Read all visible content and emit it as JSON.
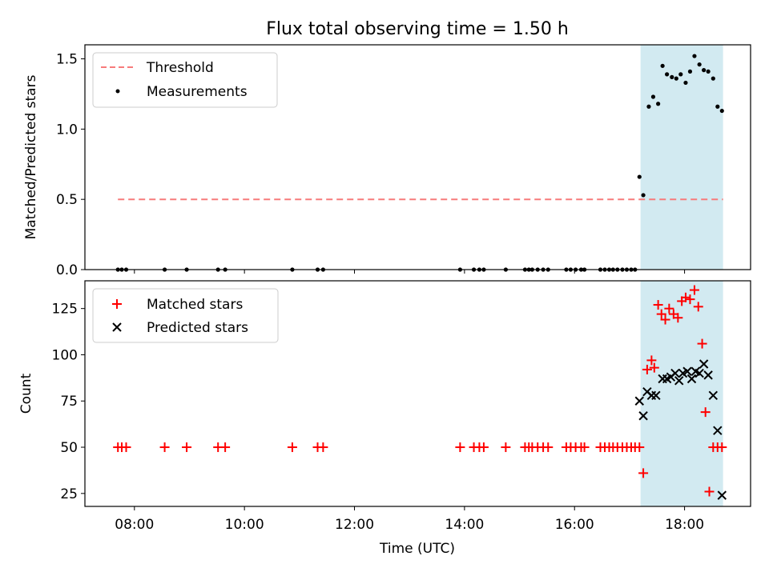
{
  "chart_data": [
    {
      "type": "scatter",
      "title": "Flux total observing time = 1.50 h",
      "xlabel": "",
      "ylabel": "Matched/Predicted stars",
      "ylim": [
        0,
        1.6
      ],
      "yticks": [
        "0.0",
        "0.5",
        "1.0",
        "1.5"
      ],
      "threshold": {
        "name": "Threshold",
        "y": 0.5,
        "x_start": 7.7,
        "x_end": 18.7,
        "color": "#f77b7b"
      },
      "shaded_region": {
        "x_start": 17.2,
        "x_end": 18.7,
        "color": "#add8e6"
      },
      "legend_position": "top-left",
      "series": [
        {
          "name": "Measurements",
          "color": "#000000",
          "x": [
            7.7,
            7.77,
            7.85,
            8.55,
            8.95,
            9.52,
            9.65,
            10.87,
            11.33,
            11.43,
            13.92,
            14.17,
            14.27,
            14.35,
            14.75,
            15.1,
            15.17,
            15.23,
            15.33,
            15.43,
            15.52,
            15.85,
            15.93,
            16.02,
            16.12,
            16.18,
            16.47,
            16.55,
            16.63,
            16.7,
            16.78,
            16.87,
            16.95,
            17.03,
            17.1,
            17.18,
            17.25,
            17.35,
            17.43,
            17.52,
            17.6,
            17.68,
            17.77,
            17.85,
            17.93,
            18.02,
            18.1,
            18.18,
            18.27,
            18.35,
            18.43,
            18.52,
            18.6,
            18.68
          ],
          "y": [
            0,
            0,
            0,
            0,
            0,
            0,
            0,
            0,
            0,
            0,
            0,
            0,
            0,
            0,
            0,
            0,
            0,
            0,
            0,
            0,
            0,
            0,
            0,
            0,
            0,
            0,
            0,
            0,
            0,
            0,
            0,
            0,
            0,
            0,
            0,
            0.66,
            0.53,
            1.16,
            1.23,
            1.18,
            1.45,
            1.39,
            1.37,
            1.36,
            1.39,
            1.33,
            1.41,
            1.52,
            1.46,
            1.42,
            1.41,
            1.36,
            1.16,
            1.13
          ]
        }
      ]
    },
    {
      "type": "scatter",
      "xlabel": "Time (UTC)",
      "ylabel": "Count",
      "ylim": [
        18,
        140
      ],
      "xlim": [
        7.1,
        19.2
      ],
      "xticks": [
        {
          "value": 8,
          "label": "08:00"
        },
        {
          "value": 10,
          "label": "10:00"
        },
        {
          "value": 12,
          "label": "12:00"
        },
        {
          "value": 14,
          "label": "14:00"
        },
        {
          "value": 16,
          "label": "16:00"
        },
        {
          "value": 18,
          "label": "18:00"
        }
      ],
      "yticks": [
        25,
        50,
        75,
        100,
        125
      ],
      "shaded_region": {
        "x_start": 17.2,
        "x_end": 18.7,
        "color": "#add8e6"
      },
      "legend_position": "top-left",
      "series": [
        {
          "name": "Matched stars",
          "marker": "plus",
          "color": "#ff0000",
          "x": [
            7.7,
            7.77,
            7.85,
            8.55,
            8.95,
            9.52,
            9.65,
            10.87,
            11.33,
            11.43,
            13.92,
            14.17,
            14.27,
            14.35,
            14.75,
            15.1,
            15.17,
            15.23,
            15.33,
            15.43,
            15.52,
            15.85,
            15.93,
            16.02,
            16.12,
            16.18,
            16.47,
            16.55,
            16.63,
            16.7,
            16.78,
            16.87,
            16.95,
            17.03,
            17.1,
            17.18,
            17.25,
            17.32,
            17.4,
            17.45,
            17.52,
            17.58,
            17.65,
            17.72,
            17.8,
            17.88,
            17.95,
            18.02,
            18.1,
            18.18,
            18.25,
            18.32,
            18.38,
            18.45,
            18.52,
            18.6,
            18.68
          ],
          "y": [
            50,
            50,
            50,
            50,
            50,
            50,
            50,
            50,
            50,
            50,
            50,
            50,
            50,
            50,
            50,
            50,
            50,
            50,
            50,
            50,
            50,
            50,
            50,
            50,
            50,
            50,
            50,
            50,
            50,
            50,
            50,
            50,
            50,
            50,
            50,
            50,
            36,
            92,
            97,
            93,
            127,
            122,
            119,
            125,
            122,
            120,
            129,
            131,
            130,
            135,
            126,
            106,
            69,
            26,
            50,
            50,
            50
          ]
        },
        {
          "name": "Predicted stars",
          "marker": "x",
          "color": "#000000",
          "x": [
            17.18,
            17.25,
            17.32,
            17.4,
            17.48,
            17.6,
            17.68,
            17.75,
            17.83,
            17.9,
            17.97,
            18.05,
            18.13,
            18.2,
            18.27,
            18.35,
            18.43,
            18.52,
            18.6,
            18.68
          ],
          "y": [
            75,
            67,
            80,
            78,
            78,
            87,
            87,
            88,
            90,
            86,
            90,
            91,
            87,
            91,
            90,
            95,
            89,
            78,
            59,
            24
          ]
        }
      ]
    }
  ]
}
